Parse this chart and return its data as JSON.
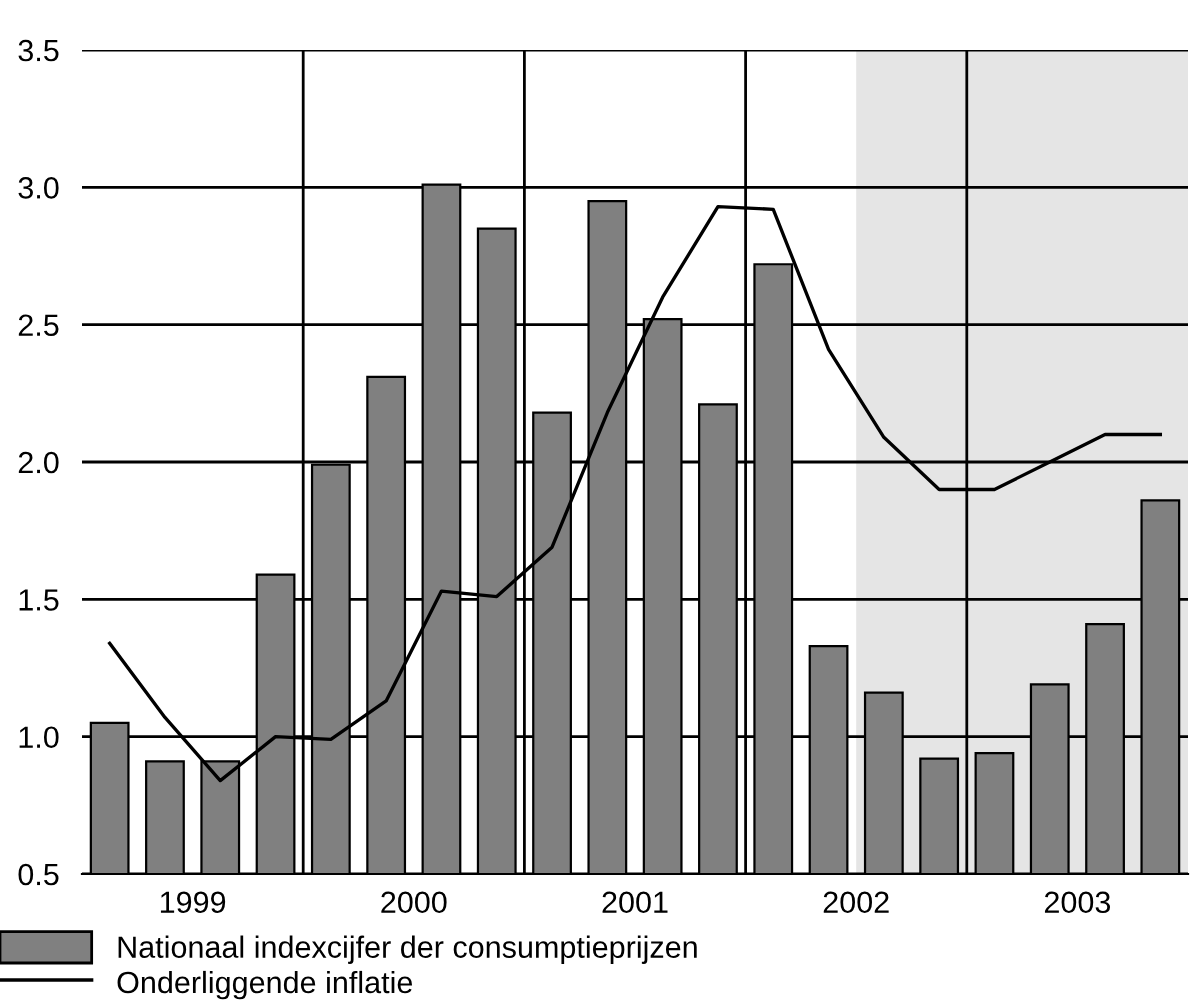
{
  "chart_data": {
    "type": "bar",
    "x": [
      1999.125,
      1999.375,
      1999.625,
      1999.875,
      2000.125,
      2000.375,
      2000.625,
      2000.875,
      2001.125,
      2001.375,
      2001.625,
      2001.875,
      2002.125,
      2002.375,
      2002.625,
      2002.875,
      2003.125,
      2003.375,
      2003.625,
      2003.875
    ],
    "series": [
      {
        "name": "Nationaal indexcijfer der consumptieprijzen",
        "color": "#808080",
        "values": [
          1.05,
          0.91,
          0.91,
          1.59,
          1.99,
          2.31,
          3.01,
          2.85,
          2.18,
          2.95,
          2.52,
          2.21,
          2.72,
          1.33,
          1.16,
          0.92,
          0.94,
          1.19,
          1.41,
          1.86
        ]
      },
      {
        "name": "Onderliggende inflatie",
        "type": "line",
        "color": "#000000",
        "values": [
          1.34,
          1.07,
          0.84,
          1.0,
          0.99,
          1.13,
          1.53,
          1.51,
          1.69,
          2.18,
          2.6,
          2.93,
          2.92,
          2.41,
          2.09,
          1.9,
          1.9,
          2.0,
          2.1,
          2.1
        ]
      }
    ],
    "xlim": [
      1999,
      2004
    ],
    "xticks": [
      {
        "value": 1999.5,
        "label": "1999"
      },
      {
        "value": 2000.5,
        "label": "2000"
      },
      {
        "value": 2001.5,
        "label": "2001"
      },
      {
        "value": 2002.5,
        "label": "2002"
      },
      {
        "value": 2003.5,
        "label": "2003"
      }
    ],
    "ylim": [
      0.5,
      3.5
    ],
    "yticks": [
      {
        "value": 0.5,
        "label": "0.5"
      },
      {
        "value": 1.0,
        "label": "1.0"
      },
      {
        "value": 1.5,
        "label": "1.5"
      },
      {
        "value": 2.0,
        "label": "2.0"
      },
      {
        "value": 2.5,
        "label": "2.5"
      },
      {
        "value": 3.0,
        "label": "3.0"
      },
      {
        "value": 3.5,
        "label": "3.5"
      }
    ],
    "ref_lines": [
      {
        "axis": "x",
        "value": 2000,
        "color": "#000000"
      },
      {
        "axis": "x",
        "value": 2001,
        "color": "#000000"
      },
      {
        "axis": "x",
        "value": 2002,
        "color": "#000000"
      },
      {
        "axis": "x",
        "value": 2003,
        "color": "#000000"
      }
    ],
    "bands": [
      {
        "axis": "x",
        "from": 2002.5,
        "to": 2004,
        "color": "#e5e5e5"
      }
    ],
    "grid": "y",
    "legend": "bottom left"
  }
}
